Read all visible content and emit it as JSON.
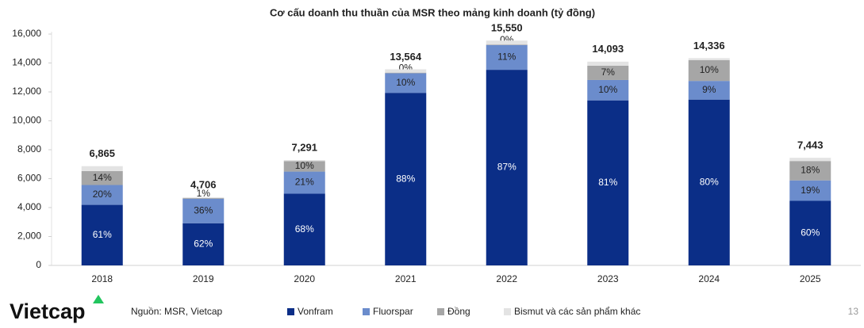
{
  "chart_data": {
    "type": "stacked_bar",
    "title": "Cơ cấu doanh thu thuần của MSR theo mảng kinh doanh (tỷ đồng)",
    "categories": [
      "2018",
      "2019",
      "2020",
      "2021",
      "2022",
      "2023",
      "2024",
      "2025"
    ],
    "series": [
      {
        "name": "Vonfram",
        "color": "#0b2e87",
        "values": [
          4188,
          2918,
          4958,
          11936,
          13529,
          11415,
          11469,
          4466
        ],
        "value_labels": [
          "61%",
          "62%",
          "68%",
          "88%",
          "87%",
          "81%",
          "80%",
          "60%"
        ]
      },
      {
        "name": "Fluorspar",
        "color": "#6b8ccc",
        "values": [
          1373,
          1694,
          1531,
          1356,
          1711,
          1409,
          1290,
          1414
        ],
        "value_labels": [
          "20%",
          "36%",
          "21%",
          "10%",
          "11%",
          "10%",
          "9%",
          "19%"
        ]
      },
      {
        "name": "Đồng",
        "color": "#a6a6a6",
        "values": [
          961,
          47,
          729,
          40,
          40,
          987,
          1434,
          1340
        ],
        "value_labels": [
          "14%",
          "1%",
          "10%",
          "0%",
          "0%",
          "7%",
          "10%",
          "18%"
        ]
      },
      {
        "name": "Bismut và các sản phẩm khác",
        "color": "#e3e3e3",
        "values": [
          343,
          47,
          73,
          232,
          270,
          282,
          143,
          223
        ]
      }
    ],
    "totals": [
      6865,
      4706,
      7291,
      13564,
      15550,
      14093,
      14336,
      7443
    ],
    "total_labels": [
      "6,865",
      "4,706",
      "7,291",
      "13,564",
      "15,550",
      "14,093",
      "14,336",
      "7,443"
    ],
    "ylim": [
      0,
      16000
    ],
    "yticks": [
      0,
      {
        "value": 2000,
        "label": "2,000"
      },
      {
        "value": 4000,
        "label": "4,000"
      },
      {
        "value": 6000,
        "label": "6,000"
      },
      {
        "value": 8000,
        "label": "8,000"
      },
      {
        "value": 10000,
        "label": "10,000"
      },
      {
        "value": 12000,
        "label": "12,000"
      },
      {
        "value": 14000,
        "label": "14,000"
      },
      {
        "value": 16000,
        "label": "16,000"
      }
    ],
    "grid": false
  },
  "footer": {
    "logo": "Vietcap",
    "source": "Nguồn: MSR, Vietcap",
    "page": "13"
  }
}
